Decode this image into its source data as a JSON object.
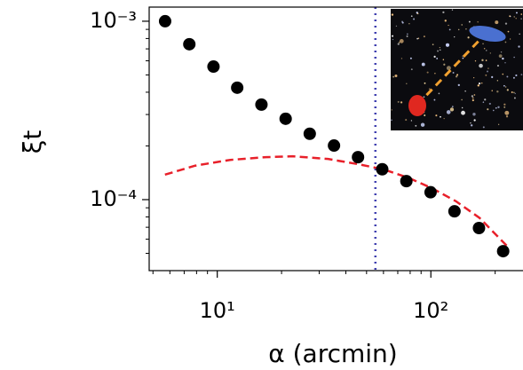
{
  "chart_data": {
    "type": "scatter",
    "log_x": true,
    "log_y": true,
    "xlabel": "α (arcmin)",
    "ylabel": "ξt",
    "xlim": [
      4.8,
      270
    ],
    "ylim": [
      4e-05,
      0.0012
    ],
    "xticks": [
      {
        "value": 10,
        "label": "10¹"
      },
      {
        "value": 100,
        "label": "10²"
      }
    ],
    "yticks": [
      {
        "value": 0.0001,
        "label": "10⁻⁴"
      },
      {
        "value": 0.001,
        "label": "10⁻³"
      }
    ],
    "xminorticks": [
      5,
      6,
      7,
      8,
      9,
      20,
      30,
      40,
      50,
      60,
      70,
      80,
      90,
      200
    ],
    "yminorticks": [
      5e-05,
      6e-05,
      7e-05,
      8e-05,
      9e-05,
      0.0002,
      0.0003,
      0.0004,
      0.0005,
      0.0006,
      0.0007,
      0.0008,
      0.0009
    ],
    "vline": {
      "x": 55,
      "color": "#4040b0"
    },
    "series": [
      {
        "kind": "points",
        "color": "#000000",
        "x": [
          5.7,
          7.4,
          9.6,
          12.4,
          16.1,
          20.9,
          27.1,
          35.2,
          45.6,
          59.2,
          76.8,
          99.7,
          129,
          168,
          218
        ],
        "values": [
          0.001,
          0.000743,
          0.000557,
          0.000424,
          0.000341,
          0.000284,
          0.000234,
          0.000201,
          0.000173,
          0.000148,
          0.000127,
          0.00011,
          8.6e-05,
          6.93e-05,
          5.14e-05
        ]
      },
      {
        "kind": "dashed-line",
        "color": "#e8202a",
        "x": [
          5.69,
          7.88,
          11.5,
          16.9,
          22.5,
          33.0,
          45.7,
          59.7,
          78.0,
          101,
          131,
          169,
          234
        ],
        "values": [
          0.000138,
          0.000155,
          0.000167,
          0.000173,
          0.000175,
          0.000169,
          0.000158,
          0.000148,
          0.000133,
          0.000116,
          9.8e-05,
          7.9e-05,
          5.3e-05
        ]
      }
    ]
  }
}
